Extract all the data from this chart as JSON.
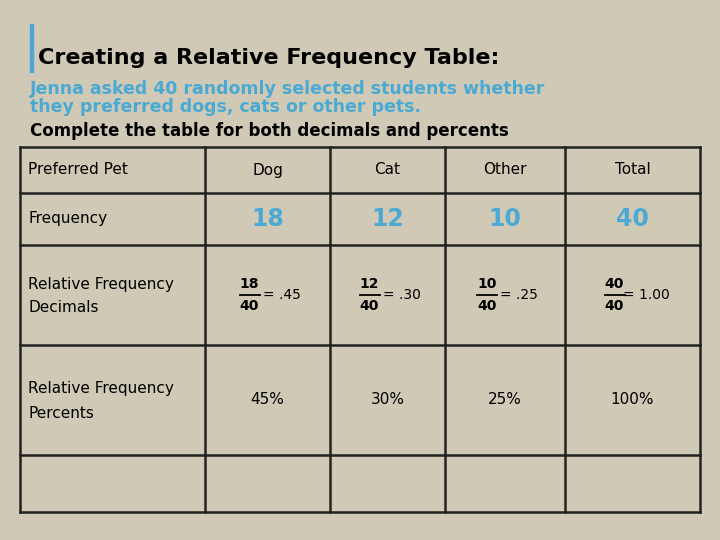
{
  "title": "Creating a Relative Frequency Table:",
  "subtitle_line1": "Jenna asked 40 randomly selected students whether",
  "subtitle_line2": "they preferred dogs, cats or other pets.",
  "instruction": "Complete the table for both decimals and percents",
  "bg_color": "#cfc9b5",
  "title_color": "#000000",
  "subtitle_color": "#4baad4",
  "instruction_color": "#000000",
  "col_headers": [
    "Preferred Pet",
    "Dog",
    "Cat",
    "Other",
    "Total"
  ],
  "row1_label": "Frequency",
  "row1_values": [
    "18",
    "12",
    "10",
    "40"
  ],
  "row1_color": "#4baad4",
  "row2_label_line1": "Relative Frequency",
  "row2_label_line2": "Decimals",
  "row2_fracs": [
    [
      "18",
      "40",
      "= .45"
    ],
    [
      "12",
      "40",
      "= .30"
    ],
    [
      "10",
      "40",
      "= .25"
    ],
    [
      "40",
      "40",
      "= 1.00"
    ]
  ],
  "row3_label_line1": "Relative Frequency",
  "row3_label_line2": "Percents",
  "row3_values": [
    "45%",
    "30%",
    "25%",
    "100%"
  ],
  "accent_color": "#4baad4",
  "table_border_color": "#222222"
}
